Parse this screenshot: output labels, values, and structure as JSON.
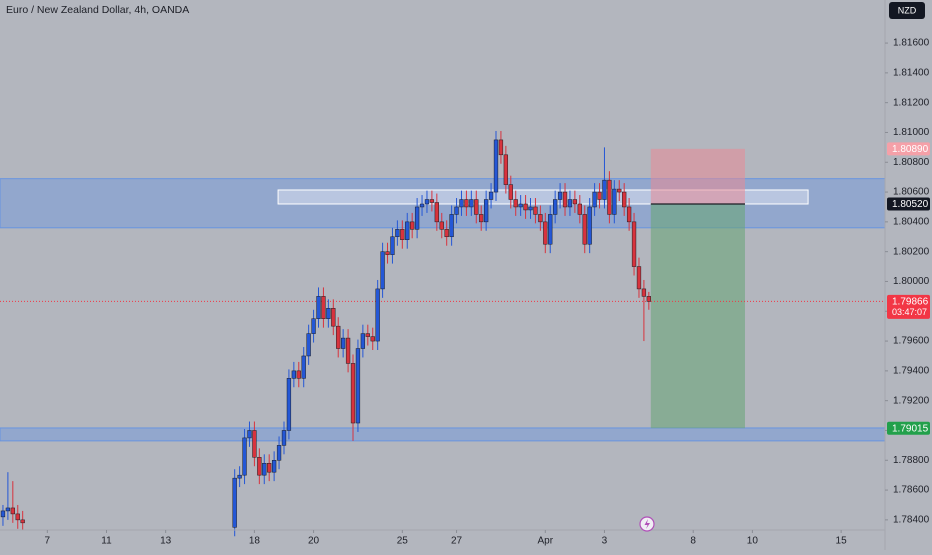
{
  "chart_data": {
    "type": "candlestick",
    "title": "Euro / New Zealand Dollar, 4h, OANDA",
    "currency": "NZD",
    "up_color": "#2457d6",
    "down_color": "#d8333d",
    "grid": false,
    "xlim": [
      -0.6,
      178.9
    ],
    "ylim": [
      1.78332,
      1.81889
    ],
    "xticks": [
      {
        "value": 9,
        "label": "7"
      },
      {
        "value": 21,
        "label": "11"
      },
      {
        "value": 33,
        "label": "13"
      },
      {
        "value": 51,
        "label": "18"
      },
      {
        "value": 63,
        "label": "20"
      },
      {
        "value": 81,
        "label": "25"
      },
      {
        "value": 92,
        "label": "27"
      },
      {
        "value": 110,
        "label": "Apr"
      },
      {
        "value": 122,
        "label": "3"
      },
      {
        "value": 140,
        "label": "8"
      },
      {
        "value": 152,
        "label": "10"
      },
      {
        "value": 170,
        "label": "15"
      }
    ],
    "yticks": [
      {
        "value": 1.784,
        "label": "1.78400"
      },
      {
        "value": 1.786,
        "label": "1.78600"
      },
      {
        "value": 1.788,
        "label": "1.78800"
      },
      {
        "value": 1.79,
        "label": "1.79000"
      },
      {
        "value": 1.792,
        "label": "1.79200"
      },
      {
        "value": 1.794,
        "label": "1.79400"
      },
      {
        "value": 1.796,
        "label": "1.79600"
      },
      {
        "value": 1.798,
        "label": "1.79800"
      },
      {
        "value": 1.8,
        "label": "1.80000"
      },
      {
        "value": 1.802,
        "label": "1.80200"
      },
      {
        "value": 1.804,
        "label": "1.80400"
      },
      {
        "value": 1.806,
        "label": "1.80600"
      },
      {
        "value": 1.808,
        "label": "1.80800"
      },
      {
        "value": 1.81,
        "label": "1.81000"
      },
      {
        "value": 1.812,
        "label": "1.81200"
      },
      {
        "value": 1.814,
        "label": "1.81400"
      },
      {
        "value": 1.816,
        "label": "1.81600"
      }
    ],
    "x": [
      0,
      1,
      2,
      3,
      4,
      47,
      48,
      49,
      50,
      51,
      52,
      53,
      54,
      55,
      56,
      57,
      58,
      59,
      60,
      61,
      62,
      63,
      64,
      65,
      66,
      67,
      68,
      69,
      70,
      71,
      72,
      73,
      74,
      75,
      76,
      77,
      78,
      79,
      80,
      81,
      82,
      83,
      84,
      85,
      86,
      87,
      88,
      89,
      90,
      91,
      92,
      93,
      94,
      95,
      96,
      97,
      98,
      99,
      100,
      101,
      102,
      103,
      104,
      105,
      106,
      107,
      108,
      109,
      110,
      111,
      112,
      113,
      114,
      115,
      116,
      117,
      118,
      119,
      120,
      121,
      122,
      123,
      124,
      125,
      126,
      127,
      128,
      129,
      130,
      131
    ],
    "open": [
      1.7842,
      1.7846,
      1.7848,
      1.7844,
      1.784,
      1.7835,
      1.7868,
      1.787,
      1.7895,
      1.79,
      1.7882,
      1.787,
      1.7878,
      1.7872,
      1.788,
      1.789,
      1.79,
      1.7935,
      1.794,
      1.7935,
      1.795,
      1.7965,
      1.7975,
      1.799,
      1.7975,
      1.7982,
      1.797,
      1.7955,
      1.7962,
      1.7945,
      1.7905,
      1.7955,
      1.7965,
      1.7963,
      1.796,
      1.7995,
      1.802,
      1.8018,
      1.803,
      1.8035,
      1.8028,
      1.804,
      1.8035,
      1.805,
      1.8052,
      1.8055,
      1.8053,
      1.804,
      1.8035,
      1.803,
      1.8045,
      1.805,
      1.8055,
      1.805,
      1.8055,
      1.8045,
      1.804,
      1.8055,
      1.806,
      1.8095,
      1.8085,
      1.8065,
      1.8055,
      1.805,
      1.8052,
      1.8048,
      1.805,
      1.8045,
      1.804,
      1.8025,
      1.8045,
      1.8055,
      1.806,
      1.805,
      1.8055,
      1.8052,
      1.8045,
      1.8025,
      1.805,
      1.806,
      1.8055,
      1.8068,
      1.8045,
      1.8062,
      1.806,
      1.805,
      1.804,
      1.801,
      1.7995,
      1.799
    ],
    "high": [
      1.785,
      1.7872,
      1.7866,
      1.785,
      1.7846,
      1.7874,
      1.7876,
      1.7901,
      1.7906,
      1.7906,
      1.7888,
      1.7884,
      1.7884,
      1.7886,
      1.7896,
      1.7906,
      1.7941,
      1.7946,
      1.7946,
      1.7956,
      1.7971,
      1.7981,
      1.7996,
      1.7996,
      1.7988,
      1.7988,
      1.7976,
      1.7968,
      1.7968,
      1.7951,
      1.7961,
      1.7971,
      1.7971,
      1.7969,
      1.8001,
      1.8026,
      1.8026,
      1.8036,
      1.8041,
      1.8041,
      1.8046,
      1.8046,
      1.8056,
      1.8058,
      1.8061,
      1.8061,
      1.8059,
      1.8046,
      1.8041,
      1.8051,
      1.8056,
      1.8061,
      1.8061,
      1.8061,
      1.8061,
      1.8051,
      1.8061,
      1.8066,
      1.8101,
      1.8101,
      1.8091,
      1.8071,
      1.8061,
      1.8058,
      1.8058,
      1.8056,
      1.8056,
      1.8051,
      1.8046,
      1.8051,
      1.8061,
      1.8066,
      1.8066,
      1.8061,
      1.8061,
      1.8058,
      1.8051,
      1.8056,
      1.8066,
      1.8066,
      1.809,
      1.8074,
      1.8068,
      1.8068,
      1.8066,
      1.8056,
      1.8046,
      1.8016,
      1.8001,
      1.7993
    ],
    "low": [
      1.7836,
      1.784,
      1.7838,
      1.7834,
      1.7833,
      1.7829,
      1.7862,
      1.7864,
      1.7889,
      1.7876,
      1.7864,
      1.7864,
      1.7866,
      1.7866,
      1.7874,
      1.7884,
      1.7894,
      1.7929,
      1.7929,
      1.7929,
      1.7944,
      1.7959,
      1.7969,
      1.7969,
      1.7969,
      1.7964,
      1.7949,
      1.7949,
      1.7939,
      1.7893,
      1.7899,
      1.7949,
      1.7957,
      1.7954,
      1.7954,
      1.7989,
      1.8012,
      1.8012,
      1.8024,
      1.8022,
      1.8022,
      1.8029,
      1.8029,
      1.8044,
      1.8046,
      1.8047,
      1.8034,
      1.8029,
      1.8024,
      1.8024,
      1.8039,
      1.8044,
      1.8044,
      1.8044,
      1.8039,
      1.8034,
      1.8034,
      1.8049,
      1.8054,
      1.8079,
      1.8059,
      1.8049,
      1.8044,
      1.8044,
      1.8042,
      1.8042,
      1.8039,
      1.8034,
      1.8019,
      1.8019,
      1.8039,
      1.8049,
      1.8044,
      1.8044,
      1.8046,
      1.8039,
      1.8019,
      1.8019,
      1.8044,
      1.8049,
      1.8049,
      1.8039,
      1.8039,
      1.8054,
      1.8044,
      1.8034,
      1.8004,
      1.7989,
      1.796,
      1.7981
    ],
    "close": [
      1.7846,
      1.7848,
      1.7844,
      1.784,
      1.7838,
      1.7868,
      1.787,
      1.7895,
      1.79,
      1.7882,
      1.787,
      1.7878,
      1.7872,
      1.788,
      1.789,
      1.79,
      1.7935,
      1.794,
      1.7935,
      1.795,
      1.7965,
      1.7975,
      1.799,
      1.7975,
      1.7982,
      1.797,
      1.7955,
      1.7962,
      1.7945,
      1.7905,
      1.7955,
      1.7965,
      1.7963,
      1.796,
      1.7995,
      1.802,
      1.8018,
      1.803,
      1.8035,
      1.8028,
      1.804,
      1.8035,
      1.805,
      1.8052,
      1.8055,
      1.8053,
      1.804,
      1.8035,
      1.803,
      1.8045,
      1.805,
      1.8055,
      1.805,
      1.8055,
      1.8045,
      1.804,
      1.8055,
      1.806,
      1.8095,
      1.8085,
      1.8065,
      1.8055,
      1.805,
      1.8052,
      1.8048,
      1.805,
      1.8045,
      1.804,
      1.8025,
      1.8045,
      1.8055,
      1.806,
      1.805,
      1.8055,
      1.8052,
      1.8045,
      1.8025,
      1.805,
      1.806,
      1.8055,
      1.8068,
      1.8045,
      1.8062,
      1.806,
      1.805,
      1.804,
      1.801,
      1.7995,
      1.799,
      1.79866
    ],
    "zones": [
      {
        "top": 1.8069,
        "bottom": 1.8036,
        "color": "#5b8ee6"
      },
      {
        "top": 1.79017,
        "bottom": 1.7893,
        "color": "#5b8ee6"
      }
    ],
    "box": {
      "x": [
        55.8,
        163.3
      ],
      "top": 1.80614,
      "bottom": 1.8052,
      "color": "#e8eef8"
    },
    "position": {
      "x": [
        131.4,
        150.5
      ],
      "stop": 1.8089,
      "entry": 1.8052,
      "target": 1.79015,
      "loss_color": "#e88a95",
      "profit_color": "#6aa57a"
    },
    "current_price": {
      "value": 1.79866,
      "label": "1.79866",
      "countdown": "03:47:07",
      "color": "#f23645"
    },
    "price_labels": [
      {
        "value": 1.8089,
        "label": "1.80890",
        "color": "#f5a0a8"
      },
      {
        "value": 1.8052,
        "label": "1.80520",
        "color": "#131722"
      },
      {
        "value": 1.79015,
        "label": "1.79015",
        "color": "#22a04b"
      }
    ]
  }
}
